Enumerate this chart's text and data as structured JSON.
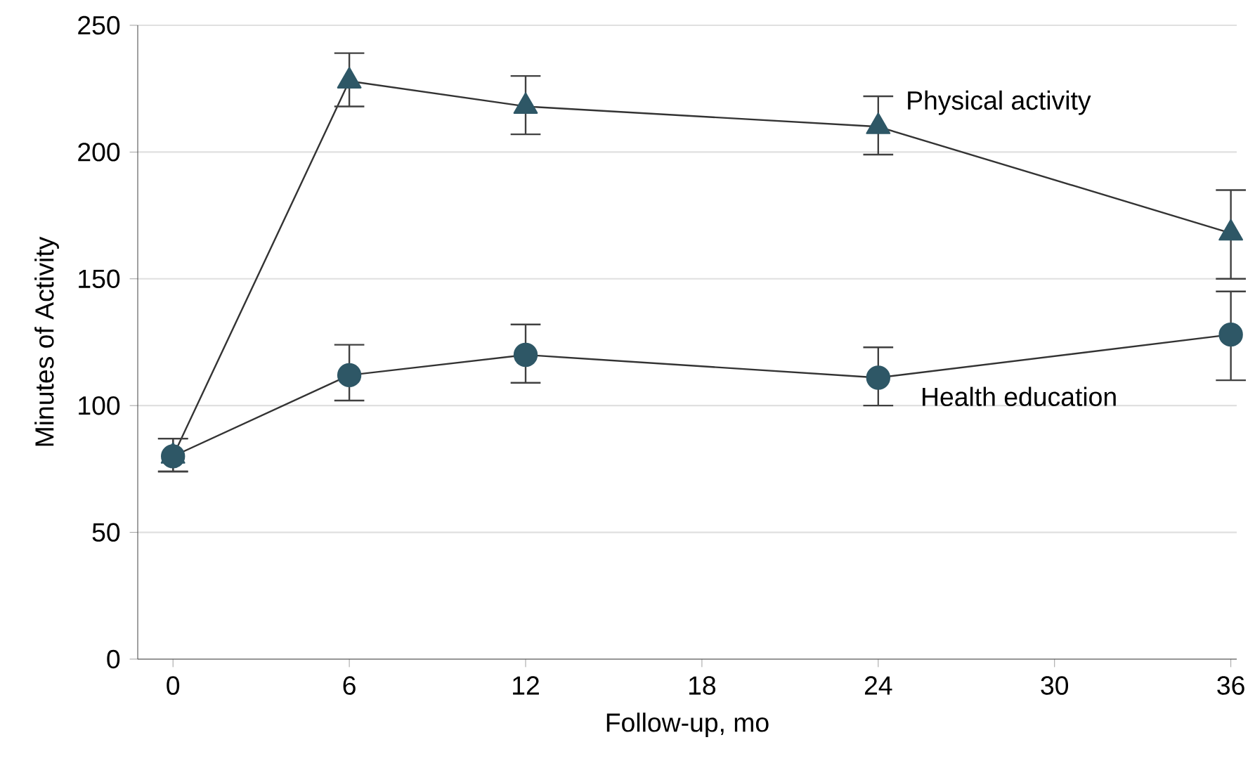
{
  "chart_data": {
    "type": "line",
    "xlabel": "Follow-up, mo",
    "ylabel": "Minutes of Activity",
    "x": [
      0,
      6,
      12,
      24,
      36
    ],
    "series": [
      {
        "name": "Physical activity",
        "color": "#2e5766",
        "marker": "triangle",
        "values": [
          80,
          228,
          218,
          210,
          168
        ],
        "errors": [
          [
            74,
            87
          ],
          [
            218,
            239
          ],
          [
            207,
            230
          ],
          [
            199,
            222
          ],
          [
            150,
            185
          ]
        ]
      },
      {
        "name": "Health education",
        "color": "#2e5766",
        "marker": "circle",
        "values": [
          80,
          112,
          120,
          111,
          128
        ],
        "errors": [
          [
            74,
            87
          ],
          [
            102,
            124
          ],
          [
            109,
            132
          ],
          [
            100,
            123
          ],
          [
            110,
            145
          ]
        ]
      }
    ],
    "xlim": [
      -1.2,
      36.2
    ],
    "ylim": [
      0,
      250
    ],
    "xticks": [
      0,
      6,
      12,
      18,
      24,
      30,
      36
    ],
    "yticks": [
      0,
      50,
      100,
      150,
      200,
      250
    ],
    "grid": "y",
    "line_style": "solid"
  }
}
